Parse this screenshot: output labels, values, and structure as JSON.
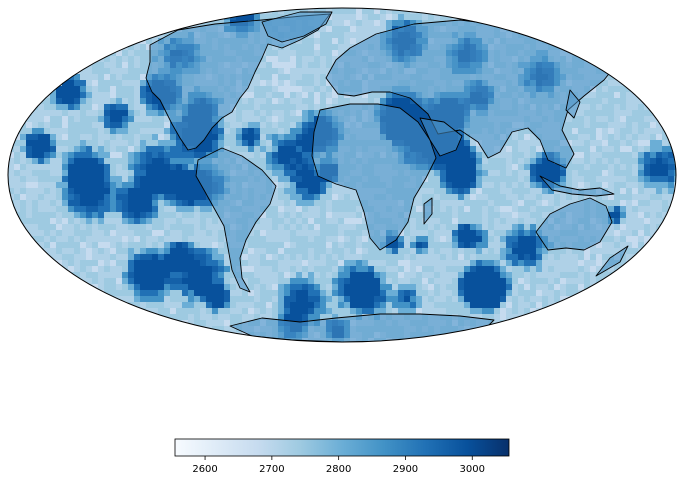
{
  "map": {
    "projection": "mollweide",
    "colormap": "Blues",
    "colors": {
      "low": "#f7fbff",
      "light": "#c6dbef",
      "mid": "#6baed6",
      "high": "#2171b5",
      "max": "#08306b",
      "coastline": "#000000"
    }
  },
  "colorbar": {
    "min": 2555,
    "max": 3055,
    "ticks": [
      "2600",
      "2700",
      "2800",
      "2900",
      "3000"
    ],
    "tick_values": [
      2600,
      2700,
      2800,
      2900,
      3000
    ]
  }
}
